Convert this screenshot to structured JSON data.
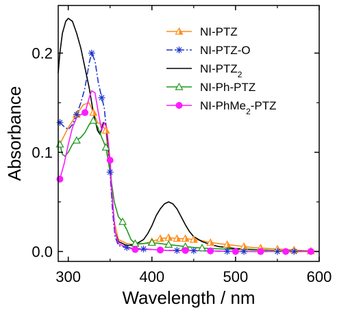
{
  "chart_data": {
    "type": "line",
    "xlabel": "Wavelength / nm",
    "ylabel": "Absorbance",
    "xlim": [
      288,
      600
    ],
    "ylim": [
      -0.01,
      0.248
    ],
    "xticks": [
      300,
      400,
      500,
      600
    ],
    "yticks": [
      0.0,
      0.1,
      0.2
    ],
    "xtick_labels": [
      "300",
      "400",
      "500",
      "600"
    ],
    "ytick_labels": [
      "0.0",
      "0.1",
      "0.2"
    ],
    "grid": false,
    "legend_position": "top-right",
    "series": [
      {
        "name": "NI-PTZ",
        "color": "#ff8c1a",
        "marker": "half-triangle",
        "dash": "solid",
        "points": [
          [
            290,
            0.108
          ],
          [
            300,
            0.125
          ],
          [
            310,
            0.138
          ],
          [
            318,
            0.148
          ],
          [
            325,
            0.15
          ],
          [
            330,
            0.14
          ],
          [
            335,
            0.13
          ],
          [
            340,
            0.128
          ],
          [
            345,
            0.122
          ],
          [
            350,
            0.08
          ],
          [
            355,
            0.03
          ],
          [
            360,
            0.012
          ],
          [
            370,
            0.008
          ],
          [
            380,
            0.007
          ],
          [
            390,
            0.008
          ],
          [
            400,
            0.01
          ],
          [
            410,
            0.013
          ],
          [
            420,
            0.014
          ],
          [
            430,
            0.013
          ],
          [
            440,
            0.013
          ],
          [
            450,
            0.012
          ],
          [
            460,
            0.011
          ],
          [
            470,
            0.009
          ],
          [
            480,
            0.008
          ],
          [
            490,
            0.007
          ],
          [
            500,
            0.006
          ],
          [
            520,
            0.004
          ],
          [
            540,
            0.003
          ],
          [
            560,
            0.002
          ],
          [
            580,
            0.001
          ],
          [
            600,
            0.0
          ]
        ],
        "marker_x": [
          290,
          310,
          330,
          345,
          400,
          410,
          420,
          430,
          440,
          450,
          470,
          490,
          510,
          530,
          550,
          570,
          590
        ]
      },
      {
        "name": "NI-PTZ-O",
        "color": "#1a33cc",
        "marker": "star",
        "dash": "dashdot",
        "points": [
          [
            290,
            0.13
          ],
          [
            295,
            0.126
          ],
          [
            300,
            0.123
          ],
          [
            305,
            0.128
          ],
          [
            310,
            0.138
          ],
          [
            315,
            0.15
          ],
          [
            320,
            0.165
          ],
          [
            325,
            0.19
          ],
          [
            328,
            0.2
          ],
          [
            332,
            0.192
          ],
          [
            336,
            0.17
          ],
          [
            340,
            0.155
          ],
          [
            343,
            0.145
          ],
          [
            347,
            0.11
          ],
          [
            350,
            0.08
          ],
          [
            353,
            0.04
          ],
          [
            356,
            0.015
          ],
          [
            360,
            0.006
          ],
          [
            370,
            0.004
          ],
          [
            380,
            0.003
          ],
          [
            400,
            0.002
          ],
          [
            420,
            0.001
          ],
          [
            440,
            0.001
          ],
          [
            500,
            0.0
          ],
          [
            600,
            0.0
          ]
        ],
        "marker_x": [
          290,
          310,
          328,
          340,
          350,
          370,
          390,
          410,
          430,
          450,
          470,
          490,
          510,
          530,
          550,
          570,
          590
        ]
      },
      {
        "name": "NI-PTZ₂",
        "color": "#000000",
        "marker": "none",
        "dash": "solid",
        "points": [
          [
            288,
            0.18
          ],
          [
            290,
            0.2
          ],
          [
            293,
            0.22
          ],
          [
            297,
            0.232
          ],
          [
            300,
            0.235
          ],
          [
            305,
            0.232
          ],
          [
            310,
            0.22
          ],
          [
            315,
            0.205
          ],
          [
            320,
            0.185
          ],
          [
            325,
            0.165
          ],
          [
            330,
            0.14
          ],
          [
            335,
            0.122
          ],
          [
            338,
            0.118
          ],
          [
            342,
            0.13
          ],
          [
            345,
            0.128
          ],
          [
            350,
            0.09
          ],
          [
            353,
            0.05
          ],
          [
            356,
            0.02
          ],
          [
            360,
            0.01
          ],
          [
            370,
            0.006
          ],
          [
            380,
            0.007
          ],
          [
            390,
            0.012
          ],
          [
            395,
            0.018
          ],
          [
            400,
            0.026
          ],
          [
            405,
            0.036
          ],
          [
            410,
            0.043
          ],
          [
            415,
            0.048
          ],
          [
            420,
            0.05
          ],
          [
            425,
            0.048
          ],
          [
            430,
            0.043
          ],
          [
            435,
            0.035
          ],
          [
            440,
            0.027
          ],
          [
            445,
            0.02
          ],
          [
            450,
            0.015
          ],
          [
            460,
            0.01
          ],
          [
            470,
            0.007
          ],
          [
            480,
            0.005
          ],
          [
            500,
            0.003
          ],
          [
            520,
            0.002
          ],
          [
            550,
            0.001
          ],
          [
            600,
            0.0
          ]
        ],
        "marker_x": []
      },
      {
        "name": "NI-Ph-PTZ",
        "color": "#1a9a1a",
        "marker": "triangle-open",
        "dash": "solid",
        "points": [
          [
            290,
            0.108
          ],
          [
            293,
            0.098
          ],
          [
            296,
            0.096
          ],
          [
            300,
            0.1
          ],
          [
            305,
            0.108
          ],
          [
            310,
            0.112
          ],
          [
            315,
            0.115
          ],
          [
            320,
            0.12
          ],
          [
            325,
            0.128
          ],
          [
            330,
            0.132
          ],
          [
            335,
            0.126
          ],
          [
            340,
            0.115
          ],
          [
            345,
            0.105
          ],
          [
            350,
            0.08
          ],
          [
            355,
            0.05
          ],
          [
            360,
            0.035
          ],
          [
            365,
            0.03
          ],
          [
            370,
            0.022
          ],
          [
            375,
            0.012
          ],
          [
            380,
            0.008
          ],
          [
            390,
            0.008
          ],
          [
            400,
            0.009
          ],
          [
            410,
            0.008
          ],
          [
            420,
            0.007
          ],
          [
            430,
            0.006
          ],
          [
            440,
            0.005
          ],
          [
            450,
            0.004
          ],
          [
            470,
            0.003
          ],
          [
            500,
            0.002
          ],
          [
            550,
            0.001
          ],
          [
            600,
            0.0
          ]
        ],
        "marker_x": [
          290,
          310,
          330,
          345,
          365,
          380,
          400,
          420,
          440,
          460
        ]
      },
      {
        "name": "NI-PhMe₂-PTZ",
        "color": "#ff1aff",
        "marker": "circle-filled",
        "dash": "solid",
        "points": [
          [
            290,
            0.073
          ],
          [
            295,
            0.088
          ],
          [
            300,
            0.108
          ],
          [
            305,
            0.125
          ],
          [
            310,
            0.135
          ],
          [
            315,
            0.138
          ],
          [
            320,
            0.14
          ],
          [
            325,
            0.155
          ],
          [
            328,
            0.162
          ],
          [
            332,
            0.16
          ],
          [
            336,
            0.14
          ],
          [
            340,
            0.122
          ],
          [
            343,
            0.13
          ],
          [
            346,
            0.125
          ],
          [
            350,
            0.092
          ],
          [
            353,
            0.05
          ],
          [
            356,
            0.02
          ],
          [
            360,
            0.008
          ],
          [
            370,
            0.004
          ],
          [
            380,
            0.002
          ],
          [
            400,
            0.002
          ],
          [
            420,
            0.001
          ],
          [
            450,
            0.001
          ],
          [
            500,
            0.0
          ],
          [
            600,
            0.0
          ]
        ],
        "marker_x": [
          290,
          320,
          350,
          380,
          410,
          440,
          470,
          500,
          530,
          560,
          590
        ]
      }
    ]
  }
}
